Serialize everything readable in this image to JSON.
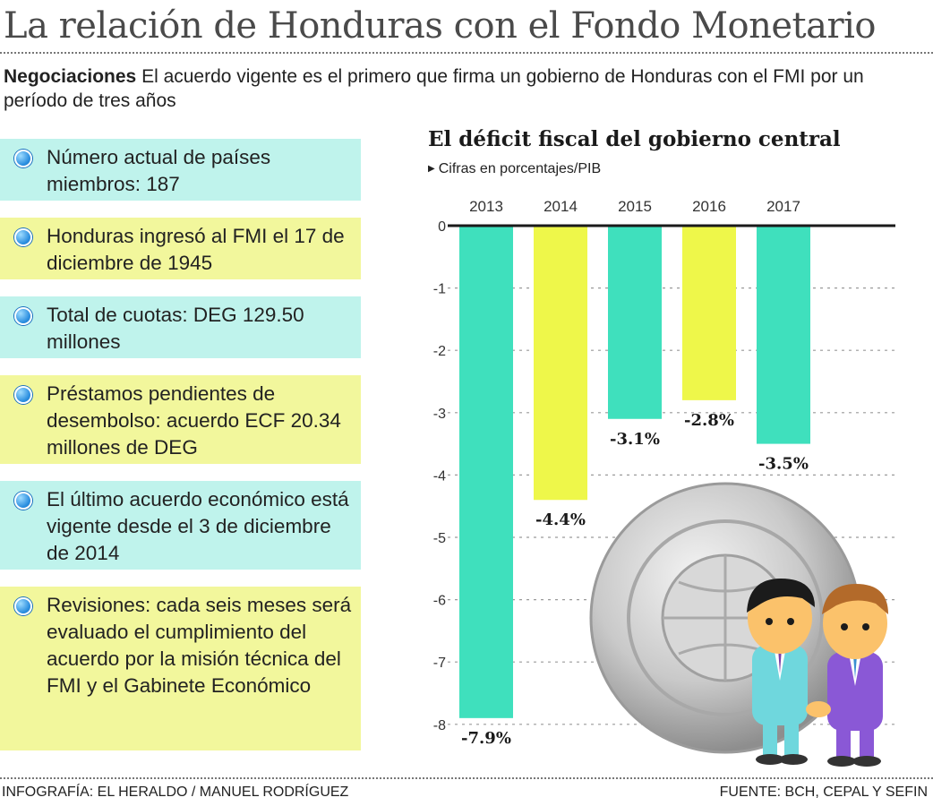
{
  "header": {
    "title": "La relación de Honduras con el Fondo Monetario",
    "intro_bold": "Negociaciones",
    "intro_text": " El acuerdo vigente es el primero que firma un gobierno de Honduras con el FMI por un período de tres años"
  },
  "facts": [
    {
      "text": "Número actual de países miembros: 187",
      "color": "#bff3ec"
    },
    {
      "text": "Honduras ingresó al FMI el 17 de diciembre de 1945",
      "color": "#f2f79c"
    },
    {
      "text": "Total de cuotas: DEG 129.50 millones",
      "color": "#bff3ec"
    },
    {
      "text": "Préstamos pendientes de desembolso: acuerdo ECF 20.34 millones de DEG",
      "color": "#f2f79c"
    },
    {
      "text": "El último acuerdo económico está vigente desde el 3 de diciembre de 2014",
      "color": "#bff3ec"
    },
    {
      "text": "Revisiones: cada seis meses será evaluado el cumplimiento del acuerdo por la misión técnica del FMI y el Gabinete Económico",
      "color": "#f2f79c"
    }
  ],
  "chart_data": {
    "type": "bar",
    "title": "El déficit fiscal del gobierno central",
    "subtitle": "Cifras en porcentajes/PIB",
    "categories": [
      "2013",
      "2014",
      "2015",
      "2016",
      "2017"
    ],
    "values": [
      -7.9,
      -4.4,
      -3.1,
      -2.8,
      -3.5
    ],
    "labels": [
      "-7.9%",
      "-4.4%",
      "-3.1%",
      "-2.8%",
      "-3.5%"
    ],
    "colors": [
      "#3fe0bd",
      "#eef74a",
      "#3fe0bd",
      "#eef74a",
      "#3fe0bd"
    ],
    "yticks": [
      "0",
      "-1",
      "-2",
      "-3",
      "-4",
      "-5",
      "-6",
      "-7",
      "-8"
    ],
    "ylim": [
      -8,
      0
    ],
    "grid": true,
    "xlabel": "",
    "ylabel": ""
  },
  "footer": {
    "credit": "INFOGRAFÍA: EL HERALDO / MANUEL RODRÍGUEZ",
    "source": "FUENTE: BCH, CEPAL Y SEFIN"
  }
}
